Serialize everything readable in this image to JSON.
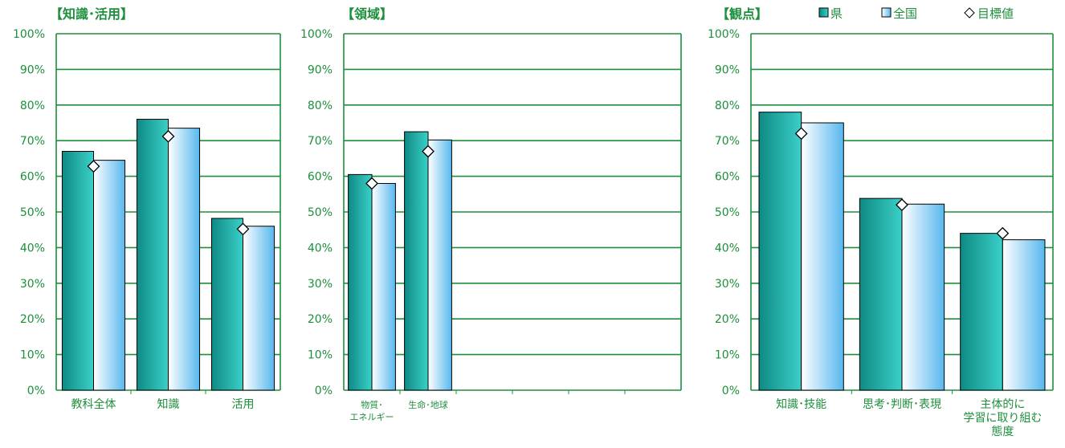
{
  "legend": {
    "placement": "top-right",
    "items": [
      {
        "label": "県",
        "icon": "teal-square-icon"
      },
      {
        "label": "全国",
        "icon": "light-square-icon"
      },
      {
        "label": "目標値",
        "icon": "diamond-icon"
      }
    ]
  },
  "colors": {
    "grid": "#1d8f3c",
    "axis_text": "#1d8f3c",
    "title_text": "#1d8f3c",
    "prefecture_dark": "#0f8a84",
    "prefecture_light": "#3ad0c8",
    "national_light": "#ffffff",
    "national_dark": "#57b8ee",
    "bar_stroke": "#000000",
    "target_fill": "#ffffff",
    "target_stroke": "#000000"
  },
  "chart_data": [
    {
      "type": "bar",
      "title": "【知識･活用】",
      "yticks": [
        "0%",
        "10%",
        "20%",
        "30%",
        "40%",
        "50%",
        "60%",
        "70%",
        "80%",
        "90%",
        "100%"
      ],
      "ylim": [
        0,
        100
      ],
      "grid": true,
      "categories": [
        "教科全体",
        "知識",
        "活用"
      ],
      "series": [
        {
          "name": "県",
          "values": [
            67.0,
            76.0,
            48.2
          ]
        },
        {
          "name": "全国",
          "values": [
            64.5,
            73.5,
            46.0
          ]
        },
        {
          "name": "目標値",
          "values": [
            62.8,
            71.2,
            45.2
          ]
        }
      ]
    },
    {
      "type": "bar",
      "title": "【領域】",
      "yticks": [
        "0%",
        "10%",
        "20%",
        "30%",
        "40%",
        "50%",
        "60%",
        "70%",
        "80%",
        "90%",
        "100%"
      ],
      "ylim": [
        0,
        100
      ],
      "grid": true,
      "categories": [
        "物質･\nエネルギー",
        "生命･地球",
        "",
        "",
        "",
        ""
      ],
      "series": [
        {
          "name": "県",
          "values": [
            60.5,
            72.5,
            null,
            null,
            null,
            null
          ]
        },
        {
          "name": "全国",
          "values": [
            58.0,
            70.2,
            null,
            null,
            null,
            null
          ]
        },
        {
          "name": "目標値",
          "values": [
            58.0,
            67.0,
            null,
            null,
            null,
            null
          ]
        }
      ]
    },
    {
      "type": "bar",
      "title": "【観点】",
      "yticks": [
        "0%",
        "10%",
        "20%",
        "30%",
        "40%",
        "50%",
        "60%",
        "70%",
        "80%",
        "90%",
        "100%"
      ],
      "ylim": [
        0,
        100
      ],
      "grid": true,
      "categories": [
        "知識･技能",
        "思考･判断･表現",
        "主体的に\n学習に取り組む\n態度"
      ],
      "series": [
        {
          "name": "県",
          "values": [
            78.0,
            53.8,
            44.0
          ]
        },
        {
          "name": "全国",
          "values": [
            75.0,
            52.2,
            42.2
          ]
        },
        {
          "name": "目標値",
          "values": [
            72.0,
            52.0,
            44.0
          ]
        }
      ]
    }
  ]
}
